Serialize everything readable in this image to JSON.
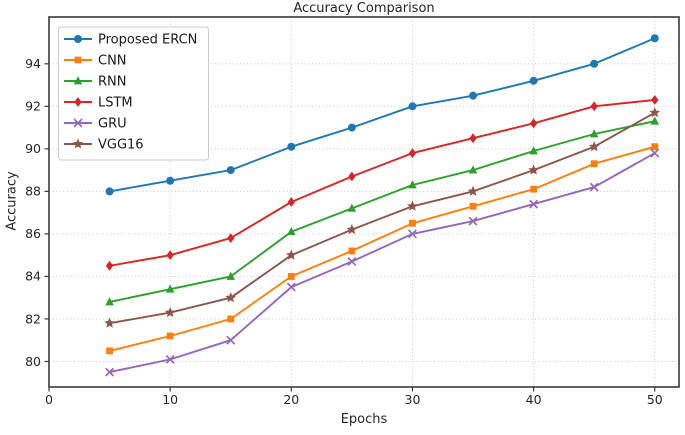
{
  "figure": {
    "title": "Accuracy Comparison",
    "xlabel": "Epochs",
    "ylabel": "Accuracy"
  },
  "chart_data": {
    "type": "line",
    "title": "Accuracy Comparison",
    "xlabel": "Epochs",
    "ylabel": "Accuracy",
    "x": [
      5,
      10,
      15,
      20,
      25,
      30,
      35,
      40,
      45,
      50
    ],
    "series": [
      {
        "name": "Proposed ERCN",
        "color": "#1f77b4",
        "marker": "circle",
        "values": [
          88.0,
          88.5,
          89.0,
          90.1,
          91.0,
          92.0,
          92.5,
          93.2,
          94.0,
          95.2
        ]
      },
      {
        "name": "CNN",
        "color": "#ff7f0e",
        "marker": "square",
        "values": [
          80.5,
          81.2,
          82.0,
          84.0,
          85.2,
          86.5,
          87.3,
          88.1,
          89.3,
          90.1
        ]
      },
      {
        "name": "RNN",
        "color": "#2ca02c",
        "marker": "triangle",
        "values": [
          82.8,
          83.4,
          84.0,
          86.1,
          87.2,
          88.3,
          89.0,
          89.9,
          90.7,
          91.3
        ]
      },
      {
        "name": "LSTM",
        "color": "#d62728",
        "marker": "diamond",
        "values": [
          84.5,
          85.0,
          85.8,
          87.5,
          88.7,
          89.8,
          90.5,
          91.2,
          92.0,
          92.3
        ]
      },
      {
        "name": "GRU",
        "color": "#9467bd",
        "marker": "x",
        "values": [
          79.5,
          80.1,
          81.0,
          83.5,
          84.7,
          86.0,
          86.6,
          87.4,
          88.2,
          89.8
        ]
      },
      {
        "name": "VGG16",
        "color": "#8c564b",
        "marker": "star",
        "values": [
          81.8,
          82.3,
          83.0,
          85.0,
          86.2,
          87.3,
          88.0,
          89.0,
          90.1,
          91.7
        ]
      }
    ],
    "xlim": [
      0,
      52
    ],
    "ylim": [
      78.8,
      96.2
    ],
    "xticks": [
      0,
      10,
      20,
      30,
      40,
      50
    ],
    "yticks": [
      80,
      82,
      84,
      86,
      88,
      90,
      92,
      94
    ],
    "grid": true,
    "grid_style": "dotted",
    "legend_position": "upper left",
    "background": "#ffffff"
  }
}
